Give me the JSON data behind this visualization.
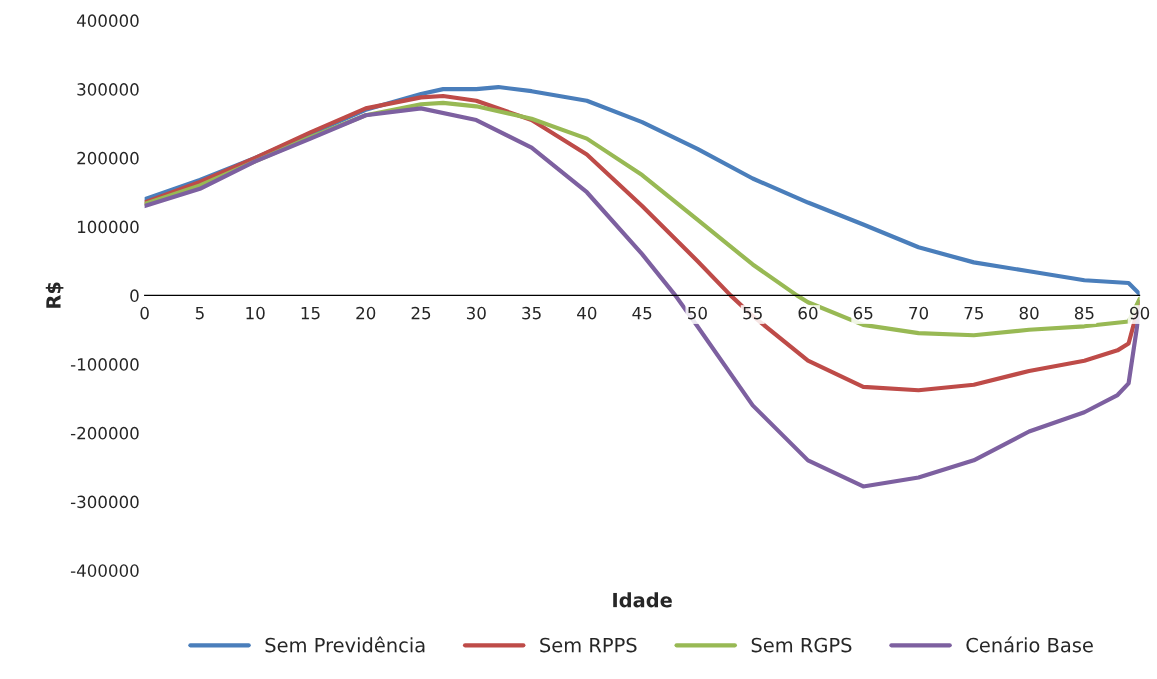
{
  "chart_data": {
    "type": "line",
    "xlabel": "Idade",
    "ylabel": "R$",
    "xlim": [
      0,
      90
    ],
    "xticks": [
      0,
      5,
      10,
      15,
      20,
      25,
      30,
      35,
      40,
      45,
      50,
      55,
      60,
      65,
      70,
      75,
      80,
      85,
      90
    ],
    "ylim": [
      -400000,
      400000
    ],
    "yticks": [
      -400000,
      -300000,
      -200000,
      -100000,
      0,
      100000,
      200000,
      300000,
      400000
    ],
    "grid": false,
    "legend": "bottom",
    "marker": "none",
    "line_style": "solid",
    "series": [
      {
        "name": "Sem Previdência",
        "color": "#4a7ebb",
        "x": [
          0,
          5,
          10,
          15,
          20,
          25,
          27,
          30,
          32,
          35,
          40,
          45,
          50,
          55,
          60,
          65,
          70,
          75,
          80,
          85,
          89,
          90
        ],
        "values": [
          140000,
          168000,
          200000,
          235000,
          270000,
          293000,
          300000,
          300000,
          303000,
          297000,
          283000,
          252000,
          213000,
          170000,
          135000,
          103000,
          70000,
          48000,
          35000,
          22000,
          18000,
          2000
        ]
      },
      {
        "name": "Sem RPPS",
        "color": "#be4b48",
        "x": [
          0,
          5,
          10,
          15,
          20,
          25,
          27,
          30,
          35,
          40,
          45,
          50,
          53,
          55,
          60,
          65,
          70,
          75,
          80,
          85,
          88,
          89,
          90
        ],
        "values": [
          135000,
          165000,
          200000,
          237000,
          272000,
          288000,
          290000,
          283000,
          255000,
          205000,
          130000,
          50000,
          0,
          -30000,
          -95000,
          -133000,
          -138000,
          -130000,
          -110000,
          -95000,
          -80000,
          -70000,
          -10000
        ]
      },
      {
        "name": "Sem RGPS",
        "color": "#98b954",
        "x": [
          0,
          5,
          10,
          15,
          20,
          25,
          27,
          30,
          35,
          40,
          45,
          50,
          55,
          59,
          60,
          65,
          70,
          75,
          80,
          85,
          89,
          90
        ],
        "values": [
          133000,
          160000,
          195000,
          230000,
          262000,
          278000,
          280000,
          275000,
          257000,
          228000,
          175000,
          110000,
          45000,
          0,
          -10000,
          -43000,
          -55000,
          -58000,
          -50000,
          -45000,
          -38000,
          -5000
        ]
      },
      {
        "name": "Cenário Base",
        "color": "#7d60a0",
        "x": [
          0,
          5,
          10,
          15,
          20,
          25,
          30,
          35,
          40,
          45,
          48,
          50,
          55,
          60,
          65,
          70,
          75,
          80,
          85,
          88,
          89,
          90
        ],
        "values": [
          130000,
          155000,
          195000,
          228000,
          262000,
          272000,
          255000,
          215000,
          150000,
          60000,
          0,
          -45000,
          -160000,
          -240000,
          -278000,
          -265000,
          -240000,
          -198000,
          -170000,
          -145000,
          -128000,
          -20000
        ]
      }
    ]
  }
}
